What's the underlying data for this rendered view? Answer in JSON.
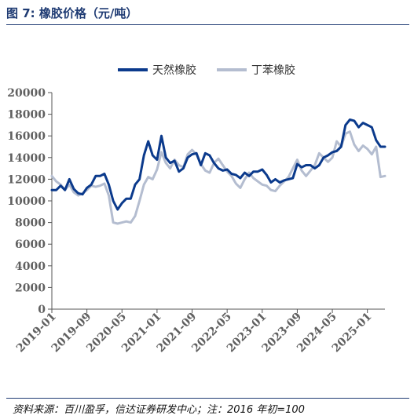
{
  "header": {
    "title": "图 7:  橡胶价格（元/吨）"
  },
  "footer": {
    "source": "资料来源：百川盈孚，信达证券研发中心；注：2016 年初=100"
  },
  "colors": {
    "natural": "#0b3a8c",
    "styrene": "#b4bdd0",
    "axis": "#555555",
    "accent": "#1f3b73"
  },
  "chart_data": {
    "type": "line",
    "title": "",
    "xlabel": "",
    "ylabel": "",
    "ylim": [
      0,
      20000
    ],
    "yticks": [
      0,
      2000,
      4000,
      6000,
      8000,
      10000,
      12000,
      14000,
      16000,
      18000,
      20000
    ],
    "xticks": [
      "2019-01",
      "2019-09",
      "2020-05",
      "2021-01",
      "2021-09",
      "2022-05",
      "2023-01",
      "2023-09",
      "2024-05",
      "2025-01"
    ],
    "x_range": [
      "2019-01",
      "2025-05"
    ],
    "grid": false,
    "legend_position": "top",
    "series": [
      {
        "name": "天然橡胶",
        "color": "#0b3a8c",
        "points": [
          [
            "2019-01",
            11000
          ],
          [
            "2019-02",
            11000
          ],
          [
            "2019-03",
            11400
          ],
          [
            "2019-04",
            11000
          ],
          [
            "2019-05",
            12000
          ],
          [
            "2019-06",
            11100
          ],
          [
            "2019-07",
            10700
          ],
          [
            "2019-08",
            10600
          ],
          [
            "2019-09",
            11200
          ],
          [
            "2019-10",
            11500
          ],
          [
            "2019-11",
            12300
          ],
          [
            "2019-12",
            12300
          ],
          [
            "2020-01",
            12500
          ],
          [
            "2020-02",
            11500
          ],
          [
            "2020-03",
            10000
          ],
          [
            "2020-04",
            9200
          ],
          [
            "2020-05",
            9800
          ],
          [
            "2020-06",
            10200
          ],
          [
            "2020-07",
            10200
          ],
          [
            "2020-08",
            11500
          ],
          [
            "2020-09",
            12000
          ],
          [
            "2020-10",
            14200
          ],
          [
            "2020-11",
            15500
          ],
          [
            "2020-12",
            14200
          ],
          [
            "2021-01",
            13800
          ],
          [
            "2021-02",
            16000
          ],
          [
            "2021-03",
            14000
          ],
          [
            "2021-04",
            13500
          ],
          [
            "2021-05",
            13700
          ],
          [
            "2021-06",
            12700
          ],
          [
            "2021-07",
            13000
          ],
          [
            "2021-08",
            14000
          ],
          [
            "2021-09",
            14300
          ],
          [
            "2021-10",
            14400
          ],
          [
            "2021-11",
            13300
          ],
          [
            "2021-12",
            14400
          ],
          [
            "2022-01",
            14200
          ],
          [
            "2022-02",
            13500
          ],
          [
            "2022-03",
            13000
          ],
          [
            "2022-04",
            12800
          ],
          [
            "2022-05",
            12900
          ],
          [
            "2022-06",
            12500
          ],
          [
            "2022-07",
            12400
          ],
          [
            "2022-08",
            12100
          ],
          [
            "2022-09",
            12600
          ],
          [
            "2022-10",
            12300
          ],
          [
            "2022-11",
            12700
          ],
          [
            "2022-12",
            12700
          ],
          [
            "2023-01",
            12900
          ],
          [
            "2023-02",
            12400
          ],
          [
            "2023-03",
            11700
          ],
          [
            "2023-04",
            12000
          ],
          [
            "2023-05",
            11700
          ],
          [
            "2023-06",
            11900
          ],
          [
            "2023-07",
            12000
          ],
          [
            "2023-08",
            12100
          ],
          [
            "2023-09",
            13400
          ],
          [
            "2023-10",
            13100
          ],
          [
            "2023-11",
            13300
          ],
          [
            "2023-12",
            13300
          ],
          [
            "2024-01",
            13000
          ],
          [
            "2024-02",
            13300
          ],
          [
            "2024-03",
            14000
          ],
          [
            "2024-04",
            14200
          ],
          [
            "2024-05",
            14500
          ],
          [
            "2024-06",
            14600
          ],
          [
            "2024-07",
            15000
          ],
          [
            "2024-08",
            17000
          ],
          [
            "2024-09",
            17500
          ],
          [
            "2024-10",
            17400
          ],
          [
            "2024-11",
            16800
          ],
          [
            "2024-12",
            17200
          ],
          [
            "2025-01",
            17000
          ],
          [
            "2025-02",
            16800
          ],
          [
            "2025-03",
            15600
          ],
          [
            "2025-04",
            15000
          ],
          [
            "2025-05",
            15000
          ]
        ]
      },
      {
        "name": "丁苯橡胶",
        "color": "#b4bdd0",
        "points": [
          [
            "2019-01",
            12300
          ],
          [
            "2019-02",
            11800
          ],
          [
            "2019-03",
            11500
          ],
          [
            "2019-04",
            11000
          ],
          [
            "2019-05",
            11500
          ],
          [
            "2019-06",
            10800
          ],
          [
            "2019-07",
            10500
          ],
          [
            "2019-08",
            10700
          ],
          [
            "2019-09",
            11000
          ],
          [
            "2019-10",
            11400
          ],
          [
            "2019-11",
            11300
          ],
          [
            "2019-12",
            11400
          ],
          [
            "2020-01",
            11600
          ],
          [
            "2020-02",
            10500
          ],
          [
            "2020-03",
            8000
          ],
          [
            "2020-04",
            7900
          ],
          [
            "2020-05",
            8000
          ],
          [
            "2020-06",
            8100
          ],
          [
            "2020-07",
            8000
          ],
          [
            "2020-08",
            8600
          ],
          [
            "2020-09",
            10000
          ],
          [
            "2020-10",
            11500
          ],
          [
            "2020-11",
            12200
          ],
          [
            "2020-12",
            12000
          ],
          [
            "2021-01",
            12900
          ],
          [
            "2021-02",
            14500
          ],
          [
            "2021-03",
            13500
          ],
          [
            "2021-04",
            13000
          ],
          [
            "2021-05",
            13800
          ],
          [
            "2021-06",
            13300
          ],
          [
            "2021-07",
            13100
          ],
          [
            "2021-08",
            14300
          ],
          [
            "2021-09",
            14700
          ],
          [
            "2021-10",
            14300
          ],
          [
            "2021-11",
            13400
          ],
          [
            "2021-12",
            12800
          ],
          [
            "2022-01",
            12600
          ],
          [
            "2022-02",
            13500
          ],
          [
            "2022-03",
            13900
          ],
          [
            "2022-04",
            13300
          ],
          [
            "2022-05",
            12700
          ],
          [
            "2022-06",
            12300
          ],
          [
            "2022-07",
            11600
          ],
          [
            "2022-08",
            11200
          ],
          [
            "2022-09",
            12000
          ],
          [
            "2022-10",
            12600
          ],
          [
            "2022-11",
            12100
          ],
          [
            "2022-12",
            11800
          ],
          [
            "2023-01",
            11500
          ],
          [
            "2023-02",
            11400
          ],
          [
            "2023-03",
            11000
          ],
          [
            "2023-04",
            10900
          ],
          [
            "2023-05",
            11400
          ],
          [
            "2023-06",
            11800
          ],
          [
            "2023-07",
            12200
          ],
          [
            "2023-08",
            13000
          ],
          [
            "2023-09",
            13800
          ],
          [
            "2023-10",
            12800
          ],
          [
            "2023-11",
            12300
          ],
          [
            "2023-12",
            12800
          ],
          [
            "2024-01",
            13300
          ],
          [
            "2024-02",
            14400
          ],
          [
            "2024-03",
            14000
          ],
          [
            "2024-04",
            13600
          ],
          [
            "2024-05",
            14000
          ],
          [
            "2024-06",
            15500
          ],
          [
            "2024-07",
            15000
          ],
          [
            "2024-08",
            16200
          ],
          [
            "2024-09",
            16400
          ],
          [
            "2024-10",
            15200
          ],
          [
            "2024-11",
            14600
          ],
          [
            "2024-12",
            15100
          ],
          [
            "2025-01",
            14800
          ],
          [
            "2025-02",
            14300
          ],
          [
            "2025-03",
            15000
          ],
          [
            "2025-04",
            12200
          ],
          [
            "2025-05",
            12300
          ]
        ]
      }
    ]
  }
}
